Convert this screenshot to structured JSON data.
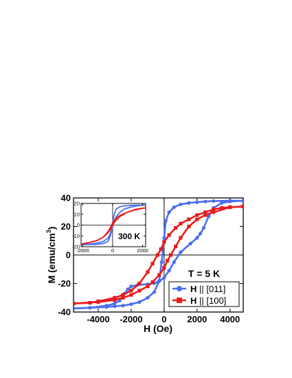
{
  "chart_data": [
    {
      "type": "line",
      "xlabel": "H (Oe)",
      "ylabel": "M (emu/cm",
      "ylabel_sup": "3",
      "ylabel_end": ")",
      "xlim": [
        -5500,
        4800
      ],
      "ylim": [
        -40,
        40
      ],
      "xticks": [
        -4000,
        -2000,
        0,
        2000,
        4000
      ],
      "xtick_labels": [
        "-4000",
        "-2000",
        "0",
        "2000",
        "4000"
      ],
      "yticks": [
        -40,
        -20,
        0,
        20,
        40
      ],
      "ytick_labels": [
        "-40",
        "-20",
        "0",
        "20",
        "40"
      ],
      "annotation": "T = 5 K",
      "legend_position": "bottom-right",
      "series": [
        {
          "name": "H || [011]",
          "legend_bold": "H",
          "legend_rest": " || [011]",
          "color": "#4a6ef0",
          "marker": "circle",
          "branches": [
            {
              "x": [
                -5500,
                -4500,
                -3500,
                -3000,
                -2500,
                -2000,
                -1500,
                -1000,
                -600,
                -300,
                -150,
                0,
                100,
                300,
                600,
                1000,
                1500,
                2000,
                2500,
                3000,
                4000,
                4800
              ],
              "y": [
                -37.5,
                -37,
                -36.5,
                -36,
                -35.5,
                -34.5,
                -33,
                -30,
                -26,
                -18,
                -5,
                12,
                24,
                30,
                33.5,
                35.5,
                36.5,
                37,
                37.5,
                37.8,
                38,
                38
              ]
            },
            {
              "x": [
                4800,
                4000,
                3500,
                3000,
                2700,
                2400,
                2200,
                2000,
                1600,
                1000,
                600,
                300,
                0,
                -300,
                -600,
                -1000,
                -1600,
                -2000,
                -2200,
                -2400,
                -2700,
                -3000,
                -3500,
                -4500,
                -5500
              ],
              "y": [
                38,
                37.5,
                36.5,
                33,
                27,
                19,
                15,
                12,
                8,
                2,
                -5,
                -11,
                -16,
                -18.5,
                -19.8,
                -20.5,
                -21,
                -22,
                -24,
                -27,
                -32,
                -34,
                -35.5,
                -37,
                -37.5
              ]
            }
          ]
        },
        {
          "name": "H || [100]",
          "legend_bold": "H",
          "legend_rest": " || [100]",
          "color": "#e81b1b",
          "marker": "square",
          "branches": [
            {
              "x": [
                -5500,
                -4500,
                -4000,
                -3000,
                -2500,
                -2000,
                -1500,
                -1000,
                -700,
                -400,
                -200,
                0,
                300,
                700,
                1000,
                1500,
                2000,
                2500,
                3000,
                3500,
                4000,
                4800
              ],
              "y": [
                -34,
                -33.5,
                -32.5,
                -30,
                -28,
                -25,
                -20,
                -12,
                -6,
                0,
                4,
                9,
                14,
                19,
                22,
                25,
                28,
                30,
                32,
                33,
                33.5,
                34
              ]
            },
            {
              "x": [
                4800,
                4000,
                3000,
                2500,
                2000,
                1500,
                1000,
                700,
                400,
                200,
                0,
                -300,
                -700,
                -1000,
                -1500,
                -2000,
                -2500,
                -3000,
                -4000,
                -5500
              ],
              "y": [
                34,
                33.5,
                30,
                28,
                25,
                20,
                12,
                6,
                0,
                -4,
                -9,
                -14,
                -19,
                -22,
                -25,
                -28,
                -30,
                -31.5,
                -33,
                -34
              ]
            }
          ]
        }
      ]
    },
    {
      "type": "line",
      "xlim": [
        -2100,
        2200
      ],
      "ylim": [
        -20,
        20
      ],
      "xticks": [
        -2000,
        0,
        2000
      ],
      "xtick_labels": [
        "-2000",
        "0",
        "2000"
      ],
      "yticks": [
        -20,
        -10,
        0,
        10,
        20
      ],
      "ytick_labels": [
        "-20",
        "-10",
        "0",
        "10",
        "20"
      ],
      "annotation": "300 K",
      "series": [
        {
          "name": "H || [011]",
          "color": "#4a6ef0",
          "branches": [
            {
              "x": [
                -2100,
                -1500,
                -1000,
                -600,
                -300,
                -150,
                0,
                100,
                250,
                500,
                800,
                1200,
                1600,
                2200
              ],
              "y": [
                -18,
                -17.5,
                -16.5,
                -15,
                -12,
                -8,
                2,
                10,
                15,
                17,
                17.8,
                18.2,
                18.4,
                18.5
              ]
            },
            {
              "x": [
                2200,
                1600,
                1200,
                800,
                500,
                250,
                100,
                0,
                -150,
                -300,
                -600,
                -1000,
                -1500,
                -2100
              ],
              "y": [
                18.5,
                17.8,
                16.5,
                15,
                12,
                8,
                4,
                -2,
                -10,
                -15,
                -17,
                -17.8,
                -18,
                -18
              ]
            }
          ]
        },
        {
          "name": "H || [100]",
          "color": "#e81b1b",
          "branches": [
            {
              "x": [
                -2100,
                -1500,
                -1000,
                -600,
                -300,
                -100,
                0,
                200,
                500,
                1000,
                1500,
                2200
              ],
              "y": [
                -17.5,
                -16,
                -14,
                -11,
                -6,
                -1,
                2,
                6,
                9,
                12,
                14.5,
                16
              ]
            },
            {
              "x": [
                2200,
                1500,
                1000,
                500,
                200,
                0,
                -100,
                -300,
                -600,
                -1000,
                -1500,
                -2100
              ],
              "y": [
                16,
                14,
                12,
                8,
                4,
                0,
                -3,
                -7,
                -11,
                -14,
                -16,
                -17.5
              ]
            }
          ]
        }
      ]
    }
  ]
}
